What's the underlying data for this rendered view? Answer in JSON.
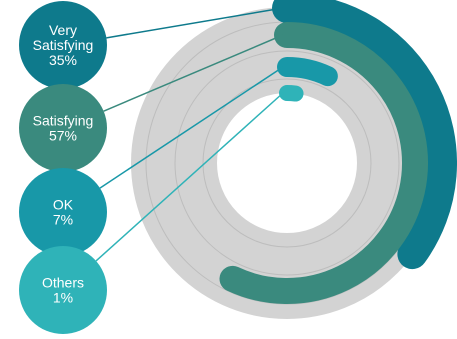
{
  "chart_data": {
    "type": "radial-bar",
    "title": "",
    "max": 100,
    "series": [
      {
        "name": "Very Satisfying",
        "label_lines": [
          "Very",
          "Satisfying"
        ],
        "pct_label": "35%",
        "value": 35,
        "color": "#0e7a8c"
      },
      {
        "name": "Satisfying",
        "label_lines": [
          "Satisfying"
        ],
        "pct_label": "57%",
        "value": 57,
        "color": "#3a8a7e"
      },
      {
        "name": "OK",
        "label_lines": [
          "OK"
        ],
        "pct_label": "7%",
        "value": 7,
        "color": "#1898a8"
      },
      {
        "name": "Others",
        "label_lines": [
          "Others"
        ],
        "pct_label": "1%",
        "value": 1,
        "color": "#2fb3b8"
      }
    ],
    "track_color": "#d3d3d3",
    "grid_color": "#bdbdbd"
  }
}
